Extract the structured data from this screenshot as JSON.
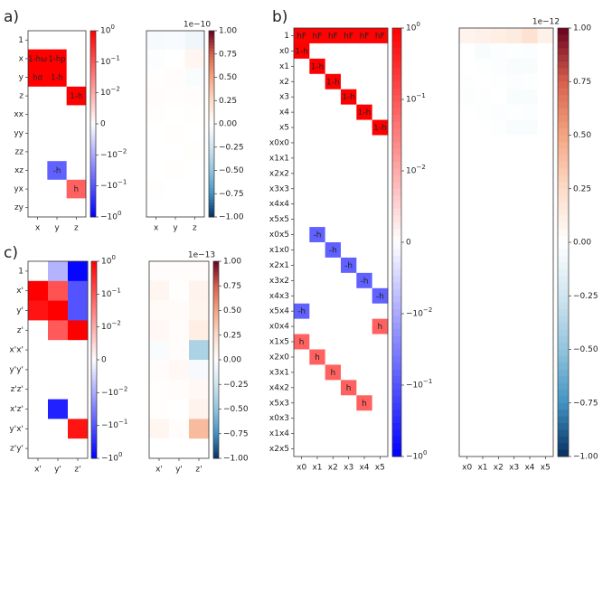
{
  "panel_labels": [
    "a)",
    "b)",
    "c)"
  ],
  "colorbar_log_ticks": [
    "10^0",
    "10^-1",
    "10^-2",
    "0",
    "-10^-2",
    "-10^-1",
    "-10^0"
  ],
  "colors": {
    "pos": "#ff0000",
    "neg": "#0000ff",
    "white": "#ffffff"
  },
  "chart_data": [
    {
      "panel": "a",
      "type": "heatmap",
      "scale": "symlog",
      "clim": [
        -1,
        1
      ],
      "rows": [
        "1",
        "x",
        "y",
        "z",
        "xx",
        "yy",
        "zz",
        "xz",
        "yx",
        "zy"
      ],
      "cols": [
        "x",
        "y",
        "z"
      ],
      "values": [
        [
          0,
          0,
          0
        ],
        [
          1,
          1,
          0
        ],
        [
          1,
          1,
          0
        ],
        [
          0,
          0,
          1
        ],
        [
          0,
          0,
          0
        ],
        [
          0,
          0,
          0
        ],
        [
          0,
          0,
          0
        ],
        [
          0,
          -0.03,
          0
        ],
        [
          0,
          0,
          0.03
        ],
        [
          0,
          0,
          0
        ]
      ],
      "cell_text": [
        [
          "",
          "",
          ""
        ],
        [
          "1-hω",
          "1-hp",
          ""
        ],
        [
          "hσ",
          "1-h",
          ""
        ],
        [
          "",
          "",
          "1-h"
        ],
        [
          "",
          "",
          ""
        ],
        [
          "",
          "",
          ""
        ],
        [
          "",
          "",
          ""
        ],
        [
          "",
          "-h",
          ""
        ],
        [
          "",
          "",
          "h"
        ],
        [
          "",
          "",
          ""
        ]
      ]
    },
    {
      "panel": "a-residual",
      "type": "heatmap",
      "scale": "linear",
      "clim": [
        -1,
        1
      ],
      "exponent_label": "1e−10",
      "cbar_ticks": [
        "1.00",
        "0.75",
        "0.50",
        "0.25",
        "0.00",
        "−0.25",
        "−0.50",
        "−0.75",
        "−1.00"
      ],
      "rows": [
        "1",
        "x",
        "y",
        "z",
        "xx",
        "yy",
        "zz",
        "xz",
        "yx",
        "zy"
      ],
      "cols": [
        "x",
        "y",
        "z"
      ],
      "values": [
        [
          -0.05,
          -0.04,
          -0.08
        ],
        [
          -0.02,
          0.0,
          0.06
        ],
        [
          0.01,
          0.02,
          -0.03
        ],
        [
          0.02,
          0.01,
          0.02
        ],
        [
          0.01,
          0.0,
          0.01
        ],
        [
          0.0,
          0.01,
          0.0
        ],
        [
          0.0,
          0.0,
          0.01
        ],
        [
          0.0,
          0.01,
          0.0
        ],
        [
          0.01,
          0.0,
          0.0
        ],
        [
          0.0,
          0.0,
          0.0
        ]
      ]
    },
    {
      "panel": "b",
      "type": "heatmap",
      "scale": "symlog",
      "clim": [
        -1,
        1
      ],
      "rows": [
        "1",
        "x0",
        "x1",
        "x2",
        "x3",
        "x4",
        "x5",
        "x0x0",
        "x1x1",
        "x2x2",
        "x3x3",
        "x4x4",
        "x5x5",
        "x0x5",
        "x1x0",
        "x2x1",
        "x3x2",
        "x4x3",
        "x5x4",
        "x0x4",
        "x1x5",
        "x2x0",
        "x3x1",
        "x4x2",
        "x5x3",
        "x0x3",
        "x1x4",
        "x2x5"
      ],
      "cols": [
        "x0",
        "x1",
        "x2",
        "x3",
        "x4",
        "x5"
      ],
      "values": [
        [
          0.9,
          0.9,
          0.9,
          0.9,
          0.9,
          0.9
        ],
        [
          1,
          0,
          0,
          0,
          0,
          0
        ],
        [
          0,
          1,
          0,
          0,
          0,
          0
        ],
        [
          0,
          0,
          1,
          0,
          0,
          0
        ],
        [
          0,
          0,
          0,
          1,
          0,
          0
        ],
        [
          0,
          0,
          0,
          0,
          1,
          0
        ],
        [
          0,
          0,
          0,
          0,
          0,
          1
        ],
        [
          0,
          0,
          0,
          0,
          0,
          0
        ],
        [
          0,
          0,
          0,
          0,
          0,
          0
        ],
        [
          0,
          0,
          0,
          0,
          0,
          0
        ],
        [
          0,
          0,
          0,
          0,
          0,
          0
        ],
        [
          0,
          0,
          0,
          0,
          0,
          0
        ],
        [
          0,
          0,
          0,
          0,
          0,
          0
        ],
        [
          0,
          -0.03,
          0,
          0,
          0,
          0
        ],
        [
          0,
          0,
          -0.03,
          0,
          0,
          0
        ],
        [
          0,
          0,
          0,
          -0.03,
          0,
          0
        ],
        [
          0,
          0,
          0,
          0,
          -0.03,
          0
        ],
        [
          0,
          0,
          0,
          0,
          0,
          -0.03
        ],
        [
          -0.03,
          0,
          0,
          0,
          0,
          0
        ],
        [
          0,
          0,
          0,
          0,
          0,
          0.03
        ],
        [
          0.03,
          0,
          0,
          0,
          0,
          0
        ],
        [
          0,
          0.03,
          0,
          0,
          0,
          0
        ],
        [
          0,
          0,
          0.03,
          0,
          0,
          0
        ],
        [
          0,
          0,
          0,
          0.03,
          0,
          0
        ],
        [
          0,
          0,
          0,
          0,
          0.03,
          0
        ],
        [
          0,
          0,
          0,
          0,
          0,
          0
        ],
        [
          0,
          0,
          0,
          0,
          0,
          0
        ],
        [
          0,
          0,
          0,
          0,
          0,
          0
        ]
      ],
      "cell_text": {
        "0": [
          "hF",
          "hF",
          "hF",
          "hF",
          "hF",
          "hF"
        ],
        "1": [
          "1-h",
          "",
          "",
          "",
          "",
          ""
        ],
        "2": [
          "",
          "1-h",
          "",
          "",
          "",
          ""
        ],
        "3": [
          "",
          "",
          "1-h",
          "",
          "",
          ""
        ],
        "4": [
          "",
          "",
          "",
          "1-h",
          "",
          ""
        ],
        "5": [
          "",
          "",
          "",
          "",
          "1-h",
          ""
        ],
        "6": [
          "",
          "",
          "",
          "",
          "",
          "1-h"
        ],
        "13": [
          "",
          "-h",
          "",
          "",
          "",
          ""
        ],
        "14": [
          "",
          "",
          "-h",
          "",
          "",
          ""
        ],
        "15": [
          "",
          "",
          "",
          "-h",
          "",
          ""
        ],
        "16": [
          "",
          "",
          "",
          "",
          "-h",
          ""
        ],
        "17": [
          "",
          "",
          "",
          "",
          "",
          "-h"
        ],
        "18": [
          "-h",
          "",
          "",
          "",
          "",
          ""
        ],
        "19": [
          "",
          "",
          "",
          "",
          "",
          "h"
        ],
        "20": [
          "h",
          "",
          "",
          "",
          "",
          ""
        ],
        "21": [
          "",
          "h",
          "",
          "",
          "",
          ""
        ],
        "22": [
          "",
          "",
          "h",
          "",
          "",
          ""
        ],
        "23": [
          "",
          "",
          "",
          "h",
          "",
          ""
        ],
        "24": [
          "",
          "",
          "",
          "",
          "h",
          ""
        ]
      }
    },
    {
      "panel": "b-residual",
      "type": "heatmap",
      "scale": "linear",
      "clim": [
        -1,
        1
      ],
      "exponent_label": "1e−12",
      "cbar_ticks": [
        "1.00",
        "0.75",
        "0.50",
        "0.25",
        "0.00",
        "−0.25",
        "−0.50",
        "−0.75",
        "−1.00"
      ],
      "rows": [
        "1",
        "x0",
        "x1",
        "x2",
        "x3",
        "x4",
        "x5",
        "x0x0",
        "x1x1",
        "x2x2",
        "x3x3",
        "x4x4",
        "x5x5",
        "x0x5",
        "x1x0",
        "x2x1",
        "x3x2",
        "x4x3",
        "x5x4",
        "x0x4",
        "x1x5",
        "x2x0",
        "x3x1",
        "x4x2",
        "x5x3",
        "x0x3",
        "x1x4",
        "x2x5"
      ],
      "cols": [
        "x0",
        "x1",
        "x2",
        "x3",
        "x4",
        "x5"
      ],
      "values": [
        [
          0.08,
          0.1,
          0.12,
          0.14,
          0.2,
          0.1
        ],
        [
          0.0,
          -0.03,
          -0.02,
          -0.01,
          -0.02,
          0.0
        ],
        [
          0.0,
          -0.01,
          -0.02,
          -0.03,
          -0.03,
          0.0
        ],
        [
          -0.01,
          0.0,
          -0.01,
          -0.02,
          -0.01,
          0.0
        ],
        [
          -0.02,
          -0.01,
          0.0,
          -0.03,
          -0.03,
          0.0
        ],
        [
          0.0,
          -0.01,
          -0.02,
          -0.01,
          -0.02,
          0.0
        ],
        [
          0.0,
          0.0,
          -0.01,
          -0.03,
          -0.03,
          0.0
        ],
        [
          0,
          0,
          0,
          0,
          0,
          0
        ],
        [
          0,
          0,
          0,
          0,
          0,
          0
        ],
        [
          0,
          0,
          0,
          0,
          0,
          0
        ],
        [
          0,
          0,
          0,
          0,
          0,
          0
        ],
        [
          0,
          0,
          0,
          0,
          0,
          0
        ],
        [
          0,
          0,
          0,
          0,
          0,
          0
        ],
        [
          0,
          0,
          0,
          0,
          0,
          0
        ],
        [
          0,
          0,
          0,
          0,
          0,
          0
        ],
        [
          0,
          0,
          0,
          0,
          0,
          0
        ],
        [
          0,
          0,
          0,
          0,
          0,
          0
        ],
        [
          0,
          0,
          0,
          0,
          0,
          0
        ],
        [
          0,
          0,
          0,
          0,
          0,
          0
        ],
        [
          0,
          0,
          0,
          0,
          0,
          0
        ],
        [
          0,
          0,
          0,
          0,
          0,
          0
        ],
        [
          0,
          0,
          0,
          0,
          0,
          0
        ],
        [
          0,
          0,
          0,
          0,
          0,
          0
        ],
        [
          0,
          0,
          0,
          0,
          0,
          0
        ],
        [
          0,
          0,
          0,
          0,
          0,
          0
        ],
        [
          0,
          0,
          0,
          0,
          0,
          0
        ],
        [
          0,
          0,
          0,
          0,
          0,
          0
        ],
        [
          0,
          0,
          0,
          0,
          0,
          0
        ]
      ]
    },
    {
      "panel": "c",
      "type": "heatmap",
      "scale": "symlog",
      "clim": [
        -1,
        1
      ],
      "rows": [
        "1",
        "x'",
        "y'",
        "z'",
        "x'x'",
        "y'y'",
        "z'z'",
        "x'z'",
        "y'x'",
        "z'y'"
      ],
      "cols": [
        "x'",
        "y'",
        "z'"
      ],
      "values": [
        [
          0,
          -0.006,
          -0.8
        ],
        [
          1,
          0.05,
          -0.05
        ],
        [
          0.5,
          1,
          -0.05
        ],
        [
          0,
          0.04,
          1
        ],
        [
          0,
          0,
          0
        ],
        [
          0,
          0,
          0
        ],
        [
          0,
          0,
          0
        ],
        [
          0,
          -0.3,
          0
        ],
        [
          0,
          0,
          0.5
        ],
        [
          0,
          0,
          0
        ]
      ]
    },
    {
      "panel": "c-residual",
      "type": "heatmap",
      "scale": "linear",
      "clim": [
        -1,
        1
      ],
      "exponent_label": "1e−13",
      "cbar_ticks": [
        "1.00",
        "0.75",
        "0.50",
        "0.25",
        "0.00",
        "−0.25",
        "−0.50",
        "−0.75",
        "−1.00"
      ],
      "rows": [
        "1",
        "x'",
        "y'",
        "z'",
        "x'x'",
        "y'y'",
        "z'z'",
        "x'z'",
        "y'x'",
        "z'y'"
      ],
      "cols": [
        "x'",
        "y'",
        "z'"
      ],
      "values": [
        [
          0.02,
          0.02,
          0.02
        ],
        [
          0.06,
          0.01,
          0.08
        ],
        [
          0.03,
          0.03,
          0.07
        ],
        [
          0.05,
          0.02,
          0.12
        ],
        [
          -0.03,
          0.02,
          -0.4
        ],
        [
          0.02,
          0.05,
          -0.05
        ],
        [
          0.01,
          0.02,
          0.05
        ],
        [
          0.01,
          0.0,
          0.08
        ],
        [
          0.06,
          0.02,
          0.4
        ],
        [
          0.0,
          0.0,
          0.0
        ]
      ]
    }
  ]
}
